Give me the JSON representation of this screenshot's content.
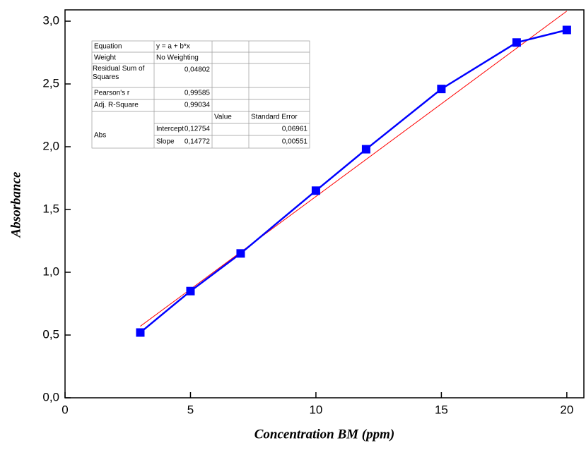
{
  "chart_data": {
    "type": "line",
    "x_label": "Concentration BM (ppm)",
    "y_label": "Absorbance",
    "x": [
      3,
      5,
      7,
      10,
      12,
      15,
      18,
      20
    ],
    "series": [
      {
        "color": "#0000ff",
        "values": [
          0.52,
          0.85,
          1.15,
          1.65,
          1.98,
          2.46,
          2.83,
          2.93
        ]
      }
    ],
    "fit": {
      "color": "#ff0000",
      "x": [
        3,
        20
      ],
      "values": [
        0.57,
        3.08
      ]
    },
    "xlim": [
      0,
      20.68
    ],
    "ylim": [
      0,
      3.09
    ],
    "xticks": [
      0,
      5,
      10,
      15,
      20
    ],
    "yticks": [
      {
        "value": 0,
        "label": "0,0"
      },
      {
        "value": 0.5,
        "label": "0,5"
      },
      {
        "value": 1,
        "label": "1,0"
      },
      {
        "value": 1.5,
        "label": "1,5"
      },
      {
        "value": 2,
        "label": "2,0"
      },
      {
        "value": 2.5,
        "label": "2,5"
      },
      {
        "value": 3,
        "label": "3,0"
      }
    ],
    "fit_table": {
      "equation": [
        "Equation",
        "y = a + b*x"
      ],
      "weight": [
        "Weight",
        "No Weighting"
      ],
      "residual": [
        "Residual Sum of Squares",
        "0,04802"
      ],
      "pearson": [
        "Pearson's r",
        "0,99585"
      ],
      "adj_r": [
        "Adj. R-Square",
        "0,99034"
      ],
      "columns": [
        "Value",
        "Standard Error"
      ],
      "group": "Abs",
      "params": [
        [
          "Intercept",
          "0,12754",
          "0,06961"
        ],
        [
          "Slope",
          "0,14772",
          "0,00551"
        ]
      ]
    }
  }
}
